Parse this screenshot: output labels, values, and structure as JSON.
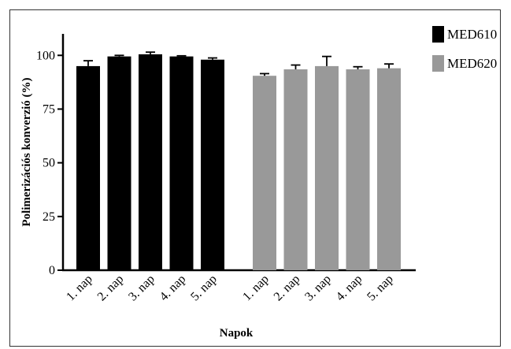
{
  "chart_data": {
    "type": "bar",
    "ylabel": "Polimerizációs konverzió (%)",
    "xlabel": "Napok",
    "ylim": [
      0,
      110
    ],
    "yticks": [
      0,
      25,
      50,
      75,
      100
    ],
    "ytick_labels": [
      "0",
      "25",
      "50",
      "75",
      "100"
    ],
    "grid": false,
    "legend_position": "top-right",
    "categories": [
      "1. nap",
      "2. nap",
      "3. nap",
      "4. nap",
      "5. nap"
    ],
    "series": [
      {
        "name": "MED610",
        "color": "#000000",
        "values": [
          95,
          99.5,
          100.5,
          99.5,
          98
        ],
        "errors": [
          2.5,
          0.5,
          1,
          0.3,
          0.8
        ]
      },
      {
        "name": "MED620",
        "color": "#999999",
        "values": [
          90.5,
          93.5,
          95,
          93.5,
          94
        ],
        "errors": [
          1,
          2,
          4.5,
          1.2,
          2
        ]
      }
    ]
  }
}
